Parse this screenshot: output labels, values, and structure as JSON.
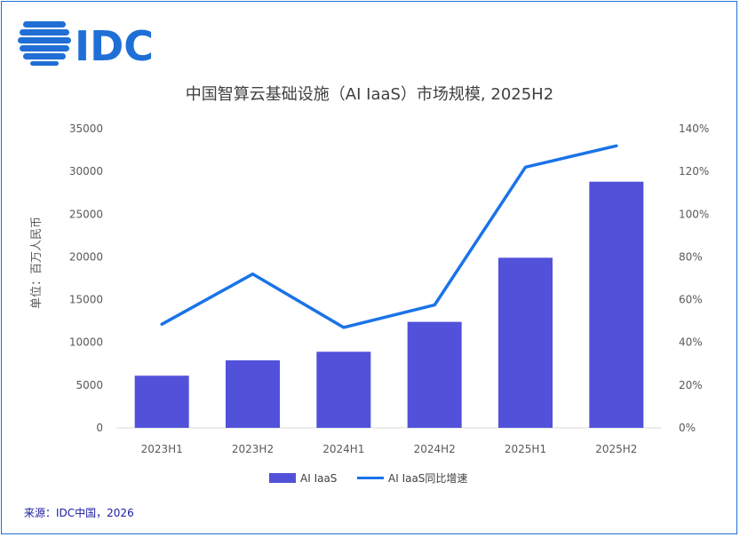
{
  "brand": {
    "logo_text": "IDC",
    "logo_color": "#1f6fd6"
  },
  "source_note": "来源：IDC中国，2026",
  "chart_data": {
    "type": "bar",
    "title": "中国智算云基础设施（AI IaaS）市场规模, 2025H2",
    "ylabel": "单位：百万人民币",
    "categories": [
      "2023H1",
      "2023H2",
      "2024H1",
      "2024H2",
      "2025H1",
      "2025H2"
    ],
    "ylim": [
      0,
      35000
    ],
    "y_ticks": [
      "0",
      "5000",
      "10000",
      "15000",
      "20000",
      "25000",
      "30000",
      "35000"
    ],
    "y2lim": [
      0,
      140
    ],
    "y2_ticks": [
      "0%",
      "20%",
      "40%",
      "60%",
      "80%",
      "100%",
      "120%",
      "140%"
    ],
    "legend_position": "bottom",
    "grid": false,
    "series": [
      {
        "name": "AI IaaS",
        "type": "bar",
        "axis": "left",
        "color": "#5151d9",
        "values": [
          6100,
          7900,
          8900,
          12400,
          19900,
          28800
        ]
      },
      {
        "name": "AI IaaS同比增速",
        "type": "line",
        "axis": "right",
        "color": "#1a73e8",
        "values": [
          48.5,
          72,
          47,
          57.5,
          122,
          132
        ]
      }
    ]
  }
}
